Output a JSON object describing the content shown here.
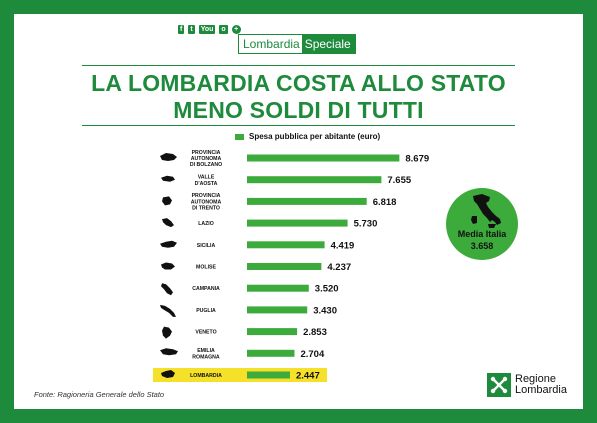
{
  "header": {
    "social": [
      "f",
      "t",
      "You",
      "o",
      "+"
    ],
    "brand_left": "Lombardia",
    "brand_right": "Speciale"
  },
  "title": {
    "line1": "LA LOMBARDIA COSTA ALLO STATO",
    "line2": "MENO SOLDI DI TUTTI"
  },
  "badge": {
    "label": "Media Italia",
    "value": "3.658"
  },
  "source": "Fonte: Ragioneria Generale dello Stato",
  "logo": {
    "line1": "Regione",
    "line2": "Lombardia"
  },
  "colors": {
    "brand_green": "#1e8a3c",
    "bar_green": "#3cab3c",
    "highlight": "#f5e02a"
  },
  "chart_data": {
    "type": "bar",
    "orientation": "horizontal",
    "legend": "Spesa pubblica per abitante (euro)",
    "highlight": "LOMBARDIA",
    "categories": [
      [
        "PROVINCIA",
        "AUTONOMA",
        "DI BOLZANO"
      ],
      [
        "VALLE",
        "D'AOSTA"
      ],
      [
        "PROVINCIA",
        "AUTONOMA",
        "DI TRENTO"
      ],
      [
        "LAZIO"
      ],
      [
        "SICILIA"
      ],
      [
        "MOLISE"
      ],
      [
        "CAMPANIA"
      ],
      [
        "PUGLIA"
      ],
      [
        "VENETO"
      ],
      [
        "EMILIA",
        "ROMAGNA"
      ],
      [
        "LOMBARDIA"
      ]
    ],
    "values": [
      8679,
      7655,
      6818,
      5730,
      4419,
      4237,
      3520,
      3430,
      2853,
      2704,
      2447
    ],
    "value_labels": [
      "8.679",
      "7.655",
      "6.818",
      "5.730",
      "4.419",
      "4.237",
      "3.520",
      "3.430",
      "2.853",
      "2.704",
      "2.447"
    ],
    "xlim": [
      0,
      9000
    ]
  }
}
